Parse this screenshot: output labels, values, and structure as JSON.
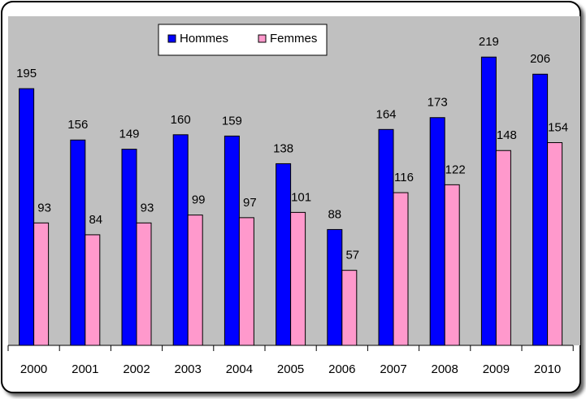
{
  "chart_data": {
    "type": "bar",
    "categories": [
      "2000",
      "2001",
      "2002",
      "2003",
      "2004",
      "2005",
      "2006",
      "2007",
      "2008",
      "2009",
      "2010"
    ],
    "series": [
      {
        "name": "Hommes",
        "color": "#0000ff",
        "values": [
          195,
          156,
          149,
          160,
          159,
          138,
          88,
          164,
          173,
          219,
          206
        ]
      },
      {
        "name": "Femmes",
        "color": "#ff99cc",
        "values": [
          93,
          84,
          93,
          99,
          97,
          101,
          57,
          116,
          122,
          148,
          154
        ]
      }
    ],
    "ylim": [
      0,
      250
    ],
    "legend": "top"
  }
}
